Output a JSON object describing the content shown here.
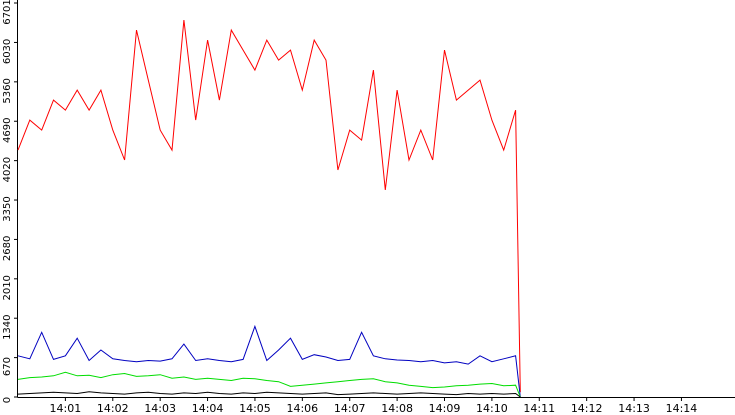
{
  "chart_data": {
    "type": "line",
    "x": [
      0,
      0.25,
      0.5,
      0.75,
      1,
      1.25,
      1.5,
      1.75,
      2,
      2.25,
      2.5,
      2.75,
      3,
      3.25,
      3.5,
      3.75,
      4,
      4.25,
      4.5,
      4.75,
      5,
      5.25,
      5.5,
      5.75,
      6,
      6.25,
      6.5,
      6.75,
      7,
      7.25,
      7.5,
      7.75,
      8,
      8.25,
      8.5,
      8.75,
      9,
      9.25,
      9.5,
      9.75,
      10,
      10.25,
      10.5,
      10.6
    ],
    "series": [
      {
        "color": "#ff0000",
        "values": [
          4200,
          4710,
          4540,
          5050,
          4880,
          5220,
          4880,
          5220,
          4540,
          4030,
          6240,
          5390,
          4540,
          4200,
          6410,
          4710,
          6070,
          5050,
          6240,
          5900,
          5560,
          6070,
          5730,
          5900,
          5220,
          6070,
          5730,
          3860,
          4540,
          4370,
          5560,
          3520,
          5220,
          4030,
          4540,
          4030,
          5900,
          5050,
          5220,
          5390,
          4710,
          4200,
          4880,
          80
        ]
      },
      {
        "color": "#0000c0",
        "values": [
          700,
          650,
          1100,
          640,
          700,
          1000,
          620,
          800,
          650,
          620,
          600,
          620,
          610,
          650,
          900,
          620,
          650,
          620,
          600,
          640,
          1200,
          620,
          800,
          1000,
          640,
          720,
          680,
          620,
          640,
          1100,
          700,
          650,
          630,
          620,
          600,
          620,
          580,
          600,
          560,
          700,
          600,
          650,
          700,
          0
        ]
      },
      {
        "color": "#00dd00",
        "values": [
          300,
          330,
          340,
          360,
          420,
          360,
          370,
          330,
          380,
          400,
          350,
          360,
          380,
          320,
          340,
          300,
          320,
          300,
          280,
          320,
          310,
          280,
          260,
          180,
          200,
          220,
          240,
          260,
          280,
          300,
          310,
          260,
          240,
          200,
          180,
          160,
          170,
          190,
          200,
          220,
          230,
          190,
          200,
          0
        ]
      },
      {
        "color": "#000000",
        "values": [
          50,
          60,
          70,
          80,
          70,
          60,
          90,
          70,
          60,
          50,
          70,
          80,
          60,
          50,
          70,
          60,
          80,
          60,
          50,
          70,
          60,
          80,
          70,
          60,
          50,
          60,
          70,
          40,
          50,
          60,
          70,
          60,
          50,
          60,
          70,
          60,
          50,
          40,
          60,
          50,
          60,
          50,
          60,
          0
        ]
      }
    ],
    "xlim": [
      0,
      15.13
    ],
    "xticks": [
      {
        "value": 1,
        "label": "14:01"
      },
      {
        "value": 2,
        "label": "14:02"
      },
      {
        "value": 3,
        "label": "14:03"
      },
      {
        "value": 4,
        "label": "14:04"
      },
      {
        "value": 5,
        "label": "14:05"
      },
      {
        "value": 6,
        "label": "14:06"
      },
      {
        "value": 7,
        "label": "14:07"
      },
      {
        "value": 8,
        "label": "14:08"
      },
      {
        "value": 9,
        "label": "14:09"
      },
      {
        "value": 10,
        "label": "14:10"
      },
      {
        "value": 11,
        "label": "14:11"
      },
      {
        "value": 12,
        "label": "14:12"
      },
      {
        "value": 13,
        "label": "14:13"
      },
      {
        "value": 14,
        "label": "14:14"
      }
    ],
    "ylim": [
      0,
      6701
    ],
    "yticks": [
      0,
      670,
      1340,
      2010,
      2680,
      3350,
      4020,
      4690,
      5360,
      6030,
      6701
    ],
    "grid": false
  }
}
